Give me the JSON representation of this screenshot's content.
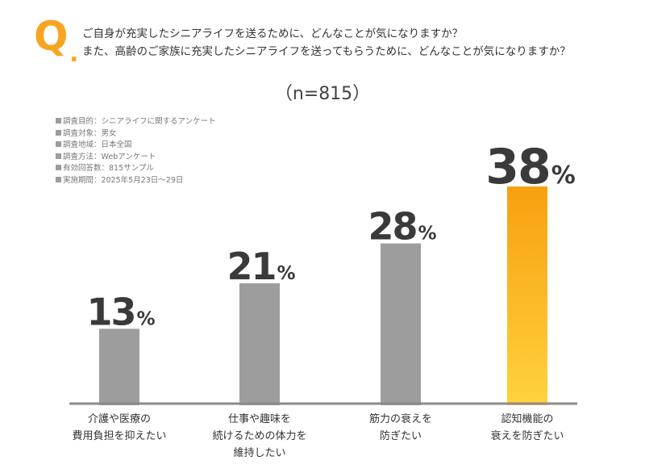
{
  "question": {
    "mark": "Q",
    "mark_dot": ".",
    "line1": "ご自身が充実したシニアライフを送るために、どんなことが気になりますか？",
    "line2": "また、高齢のご家族に充実したシニアライフを送ってもらうために、どんなことが気になりますか？"
  },
  "sample_size": "（n=815）",
  "notes": [
    "調査目的：シニアライフに関するアンケート",
    "調査対象：男女",
    "調査地域：日本全国",
    "調査方法：Webアンケート",
    "有効回答数：815サンプル",
    "実施期間：2025年5月23日～29日"
  ],
  "chart_data": {
    "type": "bar",
    "categories": [
      [
        "介護や医療の",
        "費用負担を抑えたい"
      ],
      [
        "仕事や趣味を",
        "続けるための体力を",
        "維持したい"
      ],
      [
        "筋力の衰えを",
        "防ぎたい"
      ],
      [
        "認知機能の",
        "衰えを防ぎたい"
      ]
    ],
    "values": [
      13,
      21,
      28,
      38
    ],
    "unit": "%",
    "highlight_index": 3,
    "colors": {
      "bar": "#9d9d9d",
      "highlight_top": "#f7a010",
      "highlight_bottom": "#ffd23c",
      "axis": "#8c8c8c",
      "value_text": "#3a3a3a"
    }
  }
}
